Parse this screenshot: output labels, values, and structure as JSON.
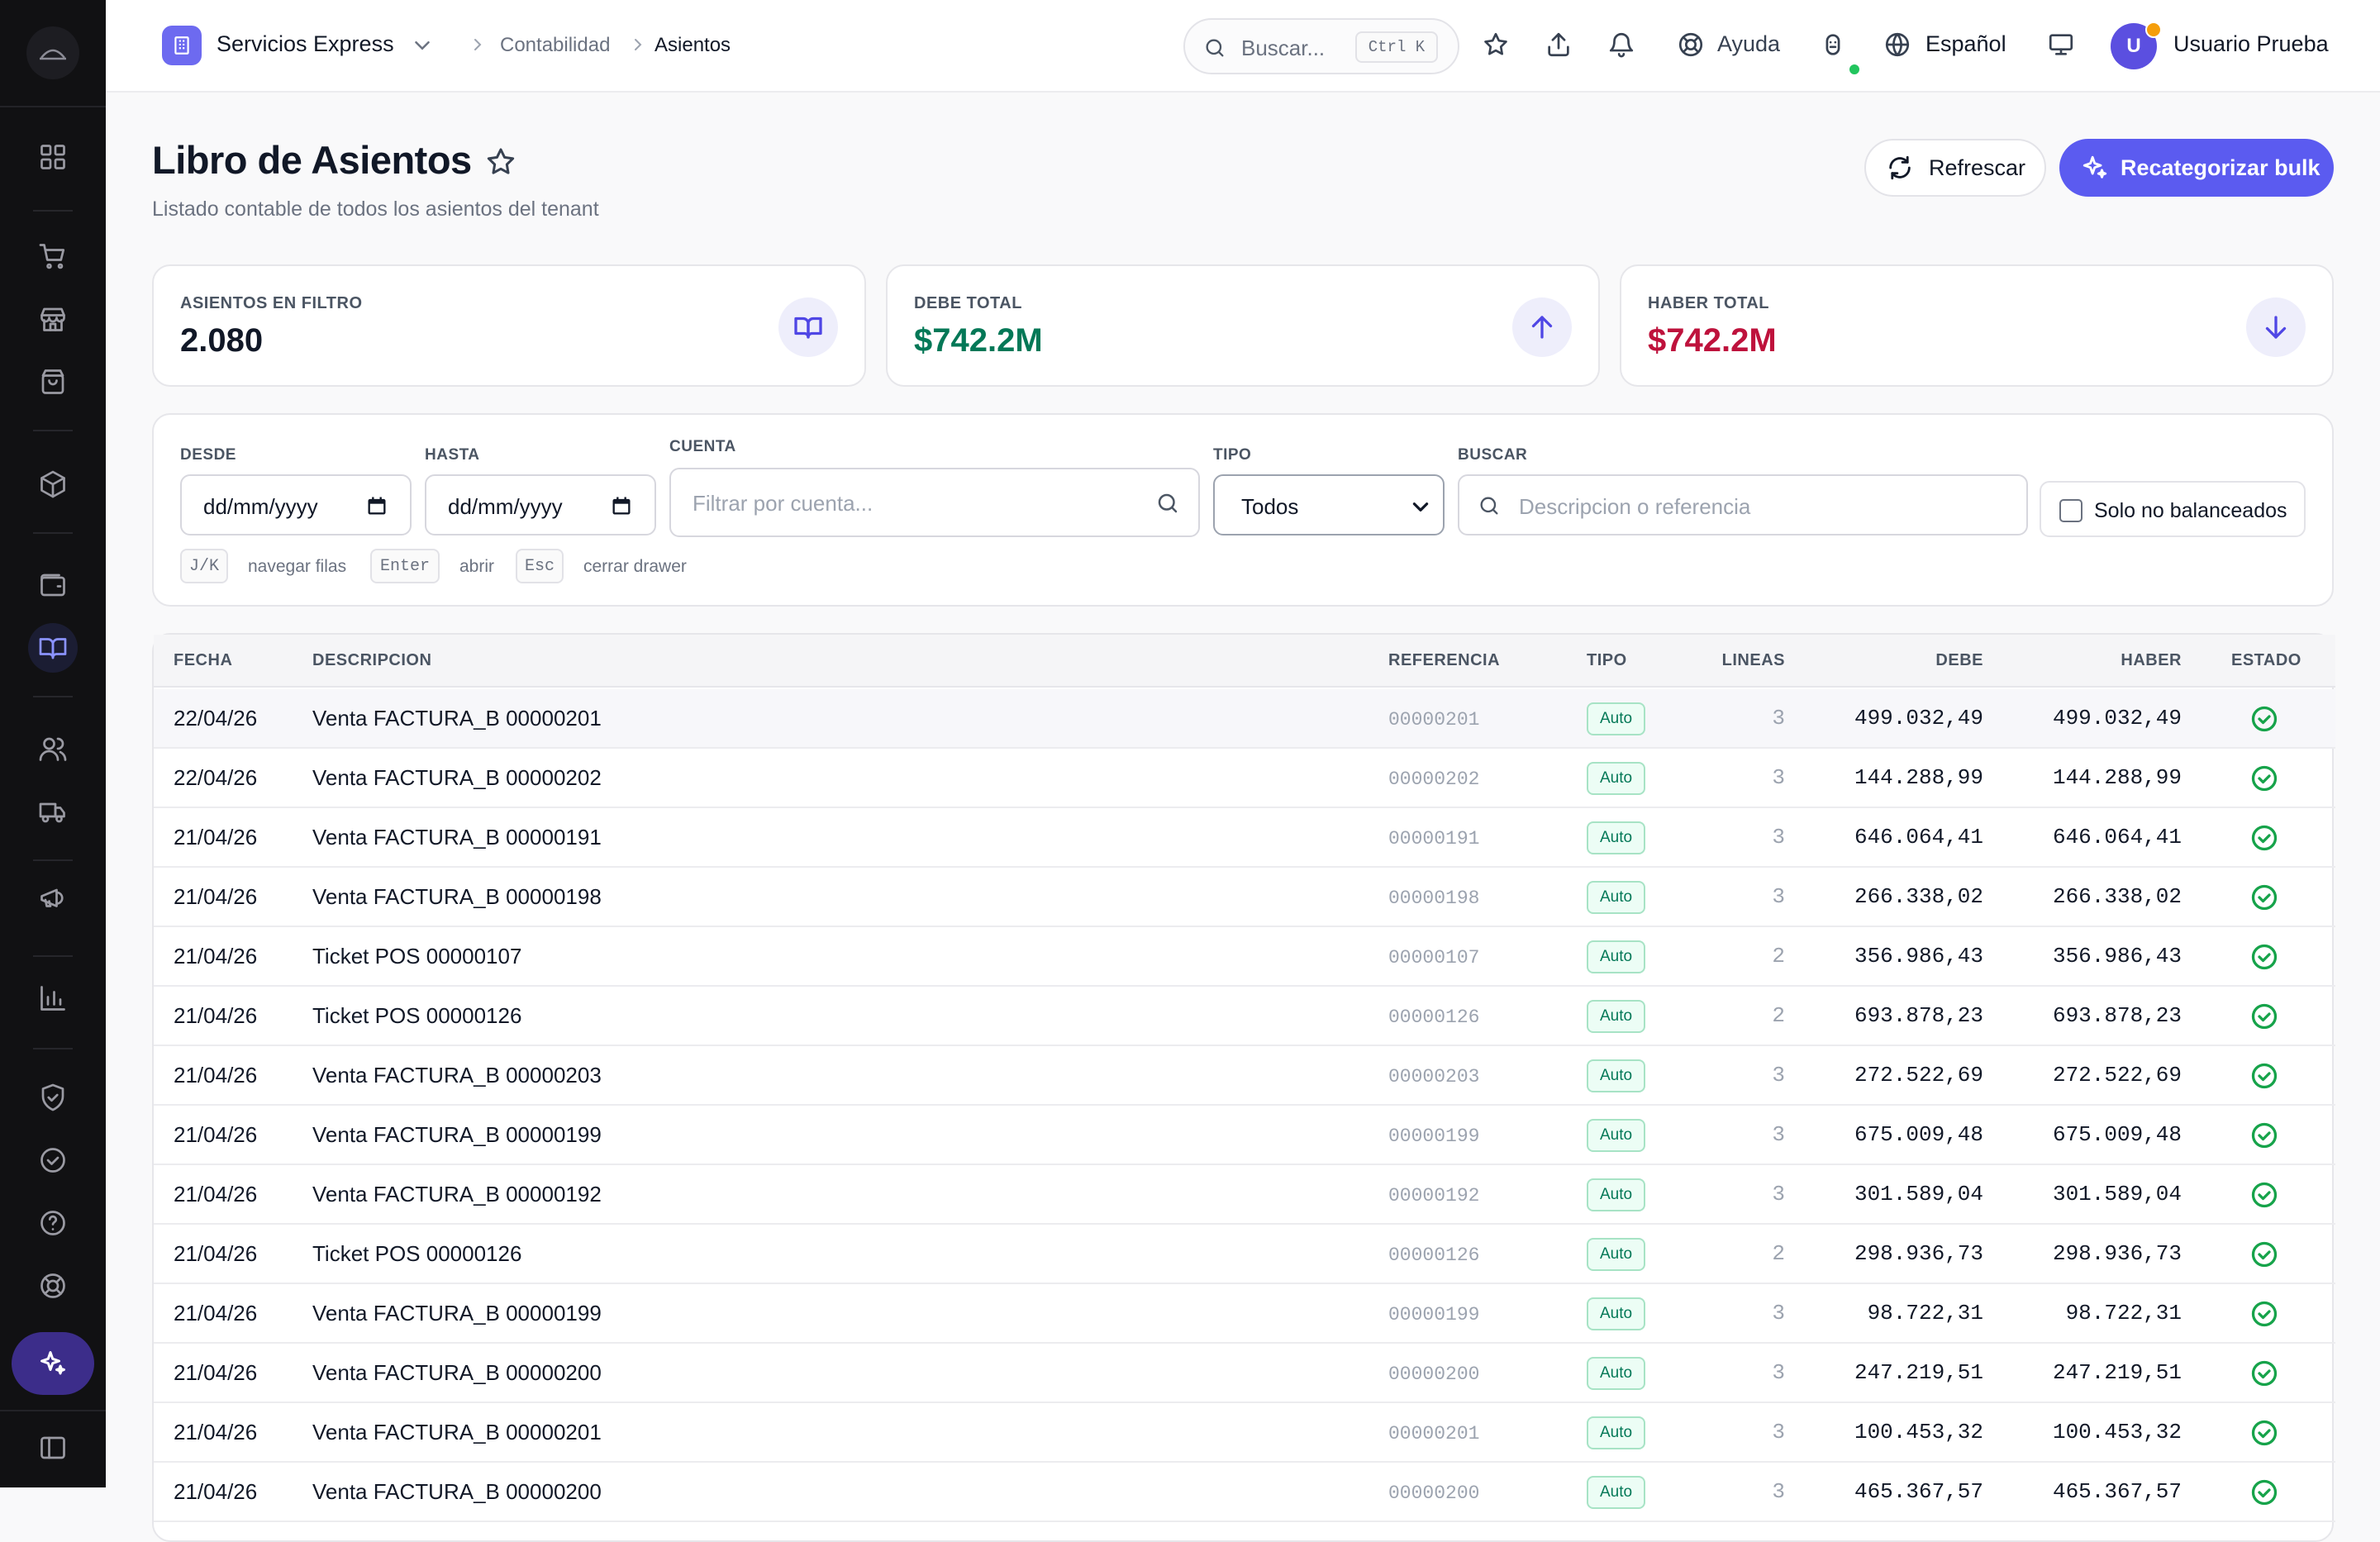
{
  "topbar": {
    "tenant": "Servicios Express",
    "breadcrumb": [
      "Contabilidad",
      "Asientos"
    ],
    "search_placeholder": "Buscar...",
    "search_shortcut": "Ctrl K",
    "help_label": "Ayuda",
    "language": "Español",
    "user_initial": "U",
    "user_name": "Usuario Prueba"
  },
  "page": {
    "title": "Libro de Asientos",
    "subtitle": "Listado contable de todos los asientos del tenant",
    "refresh_label": "Refrescar",
    "bulk_label": "Recategorizar bulk"
  },
  "stats": [
    {
      "label": "ASIENTOS EN FILTRO",
      "value": "2.080",
      "color": "#111827",
      "icon": "book-icon"
    },
    {
      "label": "DEBE TOTAL",
      "value": "$742.2M",
      "color": "#047857",
      "icon": "arrow-up-icon"
    },
    {
      "label": "HABER TOTAL",
      "value": "$742.2M",
      "color": "#be123c",
      "icon": "arrow-down-icon"
    }
  ],
  "filters": {
    "desde_label": "DESDE",
    "desde_value": "dd/mm/yyyy",
    "hasta_label": "HASTA",
    "hasta_value": "dd/mm/yyyy",
    "cuenta_label": "CUENTA",
    "cuenta_placeholder": "Filtrar por cuenta...",
    "tipo_label": "TIPO",
    "tipo_value": "Todos",
    "buscar_label": "BUSCAR",
    "buscar_placeholder": "Descripcion o referencia",
    "unbalanced_label": "Solo no balanceados",
    "hints": [
      {
        "key": "J/K",
        "text": "navegar filas"
      },
      {
        "key": "Enter",
        "text": "abrir"
      },
      {
        "key": "Esc",
        "text": "cerrar drawer"
      }
    ]
  },
  "table": {
    "columns": {
      "fecha": "FECHA",
      "descripcion": "DESCRIPCION",
      "referencia": "REFERENCIA",
      "tipo": "TIPO",
      "lineas": "LINEAS",
      "debe": "DEBE",
      "haber": "HABER",
      "estado": "ESTADO"
    },
    "rows": [
      {
        "fecha": "22/04/26",
        "descripcion": "Venta FACTURA_B 00000201",
        "referencia": "00000201",
        "tipo": "Auto",
        "lineas": "3",
        "debe": "499.032,49",
        "haber": "499.032,49"
      },
      {
        "fecha": "22/04/26",
        "descripcion": "Venta FACTURA_B 00000202",
        "referencia": "00000202",
        "tipo": "Auto",
        "lineas": "3",
        "debe": "144.288,99",
        "haber": "144.288,99"
      },
      {
        "fecha": "21/04/26",
        "descripcion": "Venta FACTURA_B 00000191",
        "referencia": "00000191",
        "tipo": "Auto",
        "lineas": "3",
        "debe": "646.064,41",
        "haber": "646.064,41"
      },
      {
        "fecha": "21/04/26",
        "descripcion": "Venta FACTURA_B 00000198",
        "referencia": "00000198",
        "tipo": "Auto",
        "lineas": "3",
        "debe": "266.338,02",
        "haber": "266.338,02"
      },
      {
        "fecha": "21/04/26",
        "descripcion": "Ticket POS 00000107",
        "referencia": "00000107",
        "tipo": "Auto",
        "lineas": "2",
        "debe": "356.986,43",
        "haber": "356.986,43"
      },
      {
        "fecha": "21/04/26",
        "descripcion": "Ticket POS 00000126",
        "referencia": "00000126",
        "tipo": "Auto",
        "lineas": "2",
        "debe": "693.878,23",
        "haber": "693.878,23"
      },
      {
        "fecha": "21/04/26",
        "descripcion": "Venta FACTURA_B 00000203",
        "referencia": "00000203",
        "tipo": "Auto",
        "lineas": "3",
        "debe": "272.522,69",
        "haber": "272.522,69"
      },
      {
        "fecha": "21/04/26",
        "descripcion": "Venta FACTURA_B 00000199",
        "referencia": "00000199",
        "tipo": "Auto",
        "lineas": "3",
        "debe": "675.009,48",
        "haber": "675.009,48"
      },
      {
        "fecha": "21/04/26",
        "descripcion": "Venta FACTURA_B 00000192",
        "referencia": "00000192",
        "tipo": "Auto",
        "lineas": "3",
        "debe": "301.589,04",
        "haber": "301.589,04"
      },
      {
        "fecha": "21/04/26",
        "descripcion": "Ticket POS 00000126",
        "referencia": "00000126",
        "tipo": "Auto",
        "lineas": "2",
        "debe": "298.936,73",
        "haber": "298.936,73"
      },
      {
        "fecha": "21/04/26",
        "descripcion": "Venta FACTURA_B 00000199",
        "referencia": "00000199",
        "tipo": "Auto",
        "lineas": "3",
        "debe": "98.722,31",
        "haber": "98.722,31"
      },
      {
        "fecha": "21/04/26",
        "descripcion": "Venta FACTURA_B 00000200",
        "referencia": "00000200",
        "tipo": "Auto",
        "lineas": "3",
        "debe": "247.219,51",
        "haber": "247.219,51"
      },
      {
        "fecha": "21/04/26",
        "descripcion": "Venta FACTURA_B 00000201",
        "referencia": "00000201",
        "tipo": "Auto",
        "lineas": "3",
        "debe": "100.453,32",
        "haber": "100.453,32"
      },
      {
        "fecha": "21/04/26",
        "descripcion": "Venta FACTURA_B 00000200",
        "referencia": "00000200",
        "tipo": "Auto",
        "lineas": "3",
        "debe": "465.367,57",
        "haber": "465.367,57"
      }
    ]
  }
}
